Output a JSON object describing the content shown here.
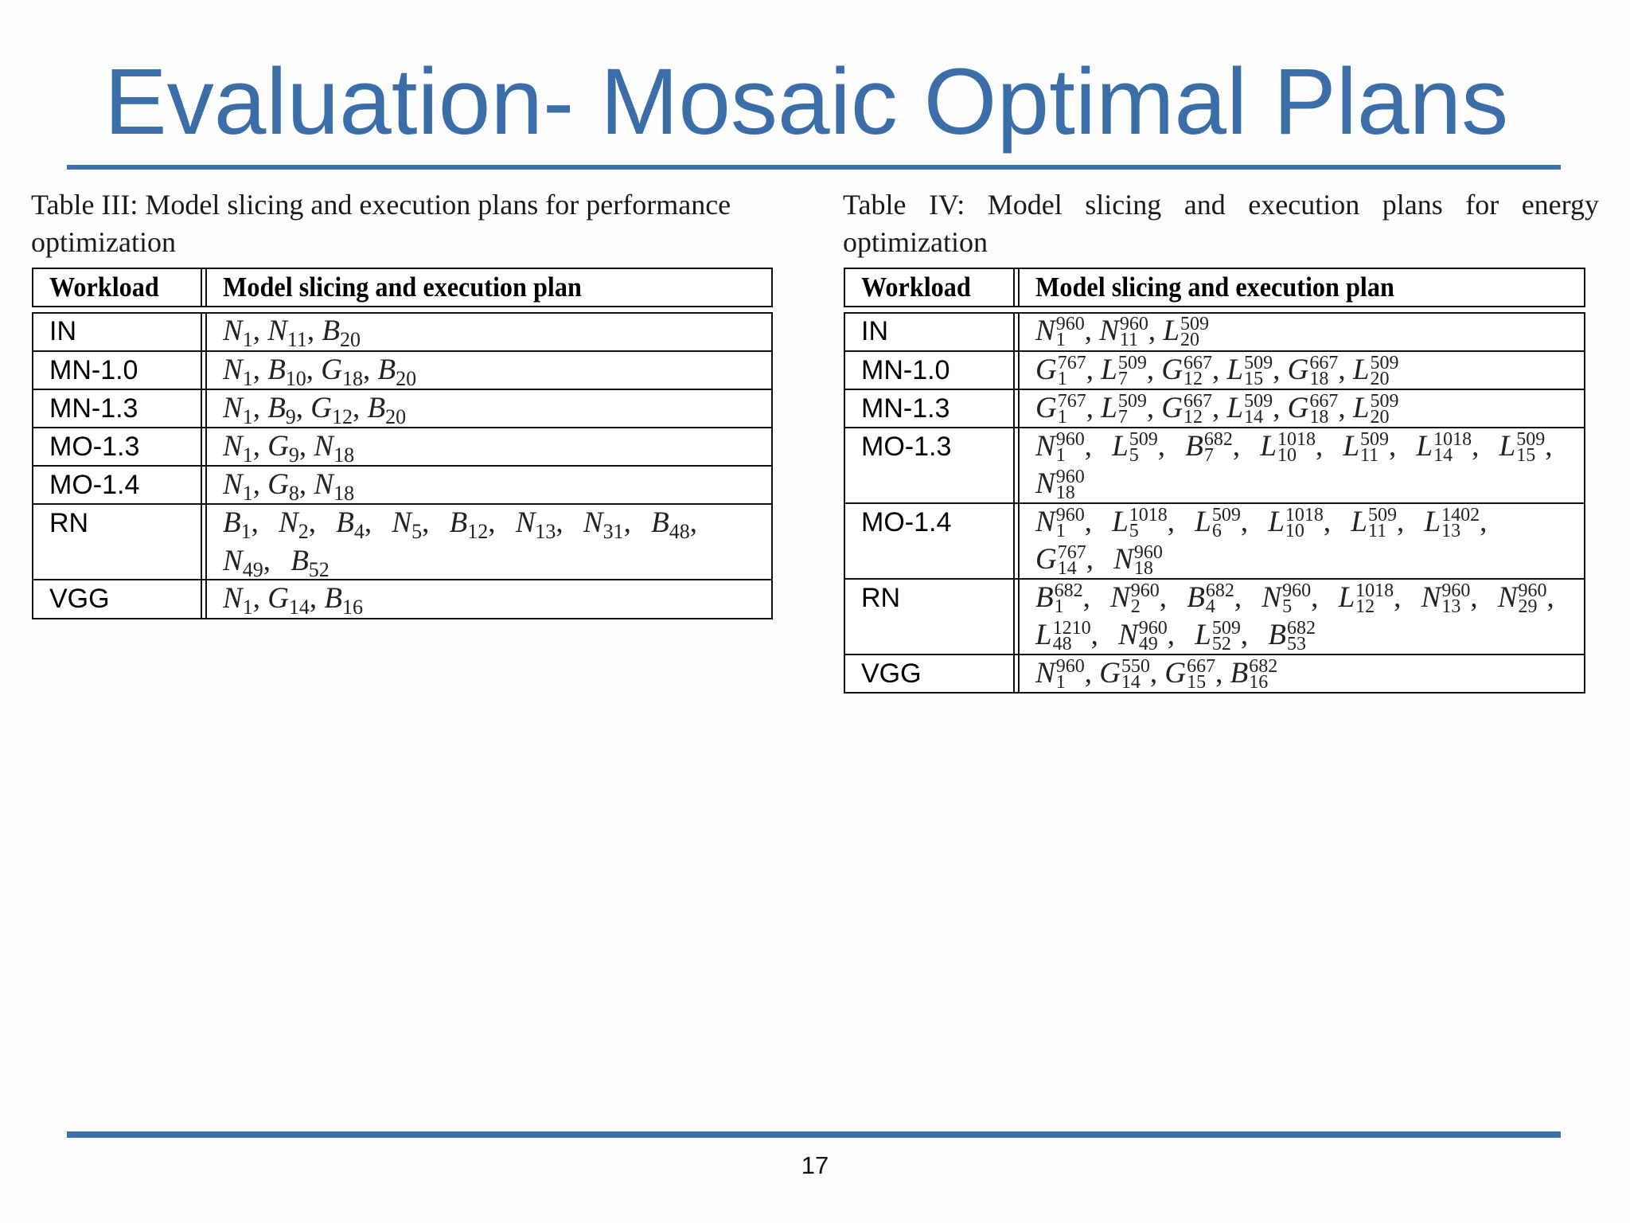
{
  "slide": {
    "title": "Evaluation- Mosaic Optimal Plans",
    "page_number": "17",
    "accent_color": "#3b6ea8"
  },
  "table3": {
    "caption_line1": "Table III: Model slicing and execution plans for performance",
    "caption_line2": "optimization",
    "headers": {
      "workload": "Workload",
      "plan": "Model slicing and execution plan"
    },
    "rows": [
      {
        "workload": "IN",
        "plan": [
          [
            "N",
            "1"
          ],
          [
            "N",
            "11"
          ],
          [
            "B",
            "20"
          ]
        ]
      },
      {
        "workload": "MN-1.0",
        "plan": [
          [
            "N",
            "1"
          ],
          [
            "B",
            "10"
          ],
          [
            "G",
            "18"
          ],
          [
            "B",
            "20"
          ]
        ]
      },
      {
        "workload": "MN-1.3",
        "plan": [
          [
            "N",
            "1"
          ],
          [
            "B",
            "9"
          ],
          [
            "G",
            "12"
          ],
          [
            "B",
            "20"
          ]
        ]
      },
      {
        "workload": "MO-1.3",
        "plan": [
          [
            "N",
            "1"
          ],
          [
            "G",
            "9"
          ],
          [
            "N",
            "18"
          ]
        ]
      },
      {
        "workload": "MO-1.4",
        "plan": [
          [
            "N",
            "1"
          ],
          [
            "G",
            "8"
          ],
          [
            "N",
            "18"
          ]
        ]
      },
      {
        "workload": "RN",
        "plan": [
          [
            "B",
            "1"
          ],
          [
            "N",
            "2"
          ],
          [
            "B",
            "4"
          ],
          [
            "N",
            "5"
          ],
          [
            "B",
            "12"
          ],
          [
            "N",
            "13"
          ],
          [
            "N",
            "31"
          ],
          [
            "B",
            "48"
          ],
          [
            "N",
            "49"
          ],
          [
            "B",
            "52"
          ]
        ]
      },
      {
        "workload": "VGG",
        "plan": [
          [
            "N",
            "1"
          ],
          [
            "G",
            "14"
          ],
          [
            "B",
            "16"
          ]
        ]
      }
    ]
  },
  "table4": {
    "caption_line1": "Table IV: Model slicing and execution plans for energy",
    "caption_line2": "optimization",
    "headers": {
      "workload": "Workload",
      "plan": "Model slicing and execution plan"
    },
    "rows": [
      {
        "workload": "IN",
        "plan": [
          [
            "N",
            "1",
            "960"
          ],
          [
            "N",
            "11",
            "960"
          ],
          [
            "L",
            "20",
            "509"
          ]
        ]
      },
      {
        "workload": "MN-1.0",
        "plan": [
          [
            "G",
            "1",
            "767"
          ],
          [
            "L",
            "7",
            "509"
          ],
          [
            "G",
            "12",
            "667"
          ],
          [
            "L",
            "15",
            "509"
          ],
          [
            "G",
            "18",
            "667"
          ],
          [
            "L",
            "20",
            "509"
          ]
        ]
      },
      {
        "workload": "MN-1.3",
        "plan": [
          [
            "G",
            "1",
            "767"
          ],
          [
            "L",
            "7",
            "509"
          ],
          [
            "G",
            "12",
            "667"
          ],
          [
            "L",
            "14",
            "509"
          ],
          [
            "G",
            "18",
            "667"
          ],
          [
            "L",
            "20",
            "509"
          ]
        ]
      },
      {
        "workload": "MO-1.3",
        "plan": [
          [
            "N",
            "1",
            "960"
          ],
          [
            "L",
            "5",
            "509"
          ],
          [
            "B",
            "7",
            "682"
          ],
          [
            "L",
            "10",
            "1018"
          ],
          [
            "L",
            "11",
            "509"
          ],
          [
            "L",
            "14",
            "1018"
          ],
          [
            "L",
            "15",
            "509"
          ],
          [
            "N",
            "18",
            "960"
          ]
        ]
      },
      {
        "workload": "MO-1.4",
        "plan": [
          [
            "N",
            "1",
            "960"
          ],
          [
            "L",
            "5",
            "1018"
          ],
          [
            "L",
            "6",
            "509"
          ],
          [
            "L",
            "10",
            "1018"
          ],
          [
            "L",
            "11",
            "509"
          ],
          [
            "L",
            "13",
            "1402"
          ],
          [
            "G",
            "14",
            "767"
          ],
          [
            "N",
            "18",
            "960"
          ]
        ]
      },
      {
        "workload": "RN",
        "plan": [
          [
            "B",
            "1",
            "682"
          ],
          [
            "N",
            "2",
            "960"
          ],
          [
            "B",
            "4",
            "682"
          ],
          [
            "N",
            "5",
            "960"
          ],
          [
            "L",
            "12",
            "1018"
          ],
          [
            "N",
            "13",
            "960"
          ],
          [
            "N",
            "29",
            "960"
          ],
          [
            "L",
            "48",
            "1210"
          ],
          [
            "N",
            "49",
            "960"
          ],
          [
            "L",
            "52",
            "509"
          ],
          [
            "B",
            "53",
            "682"
          ]
        ]
      },
      {
        "workload": "VGG",
        "plan": [
          [
            "N",
            "1",
            "960"
          ],
          [
            "G",
            "14",
            "550"
          ],
          [
            "G",
            "15",
            "667"
          ],
          [
            "B",
            "16",
            "682"
          ]
        ]
      }
    ]
  }
}
